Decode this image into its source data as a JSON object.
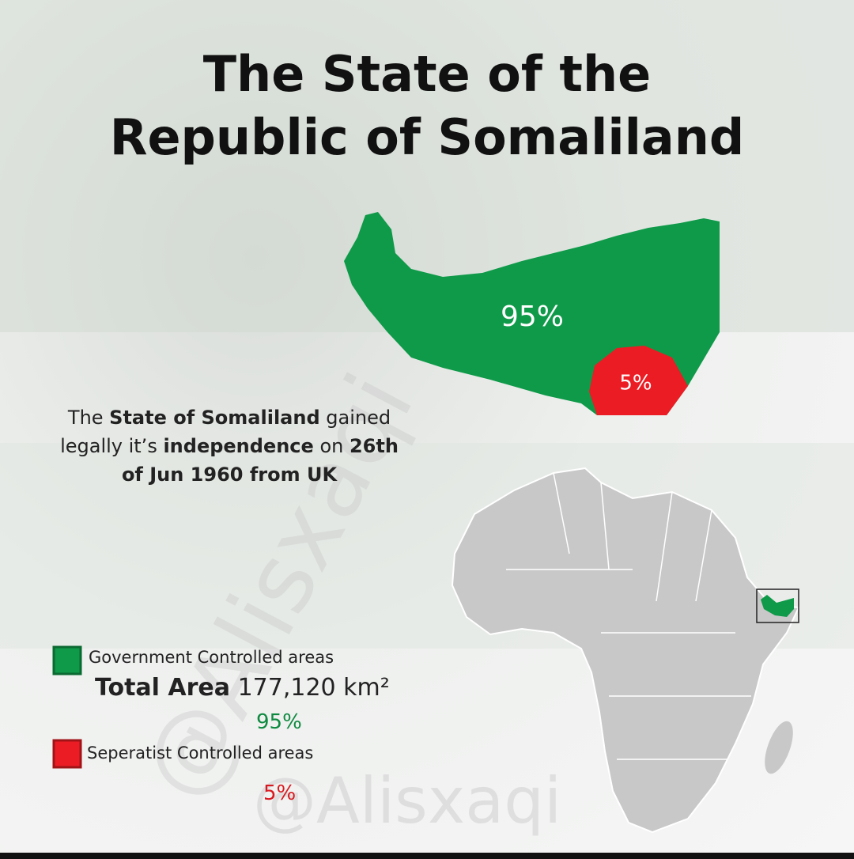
{
  "title": {
    "lines": [
      "The State of the",
      "Republic of Somaliland"
    ]
  },
  "map": {
    "government_label": "95%",
    "separatist_label": "5%"
  },
  "description": {
    "runs": [
      "The ",
      "State of Somaliland",
      " gained legally it’s ",
      "independence",
      " on ",
      "26th of Jun 1960 from UK"
    ]
  },
  "legend": {
    "government": "Government Controlled areas",
    "total_area_label": "Total Area",
    "total_area_value": "177,120 km²",
    "government_share": "95%",
    "separatist": "Seperatist Controlled areas",
    "separatist_share": "5%"
  },
  "watermark": "@Alisxaqi"
}
